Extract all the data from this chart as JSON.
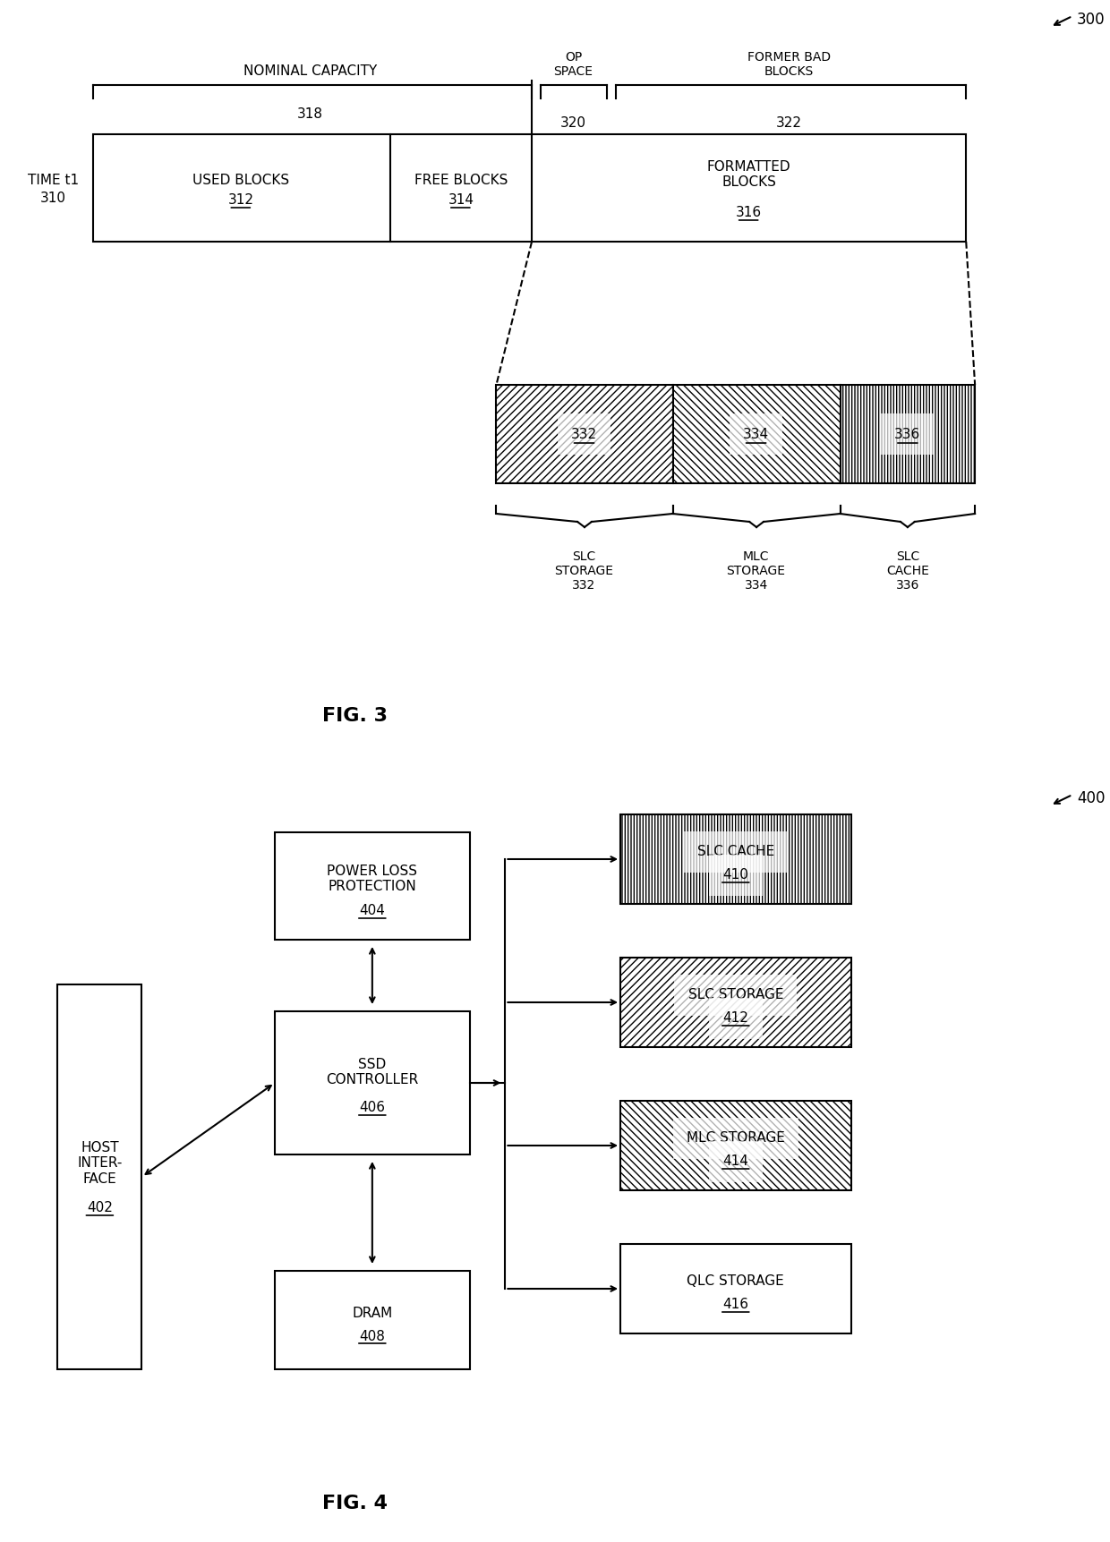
{
  "fig_width": 12.4,
  "fig_height": 17.23,
  "bg_color": "#ffffff",
  "line_color": "#000000",
  "fig3": {
    "ref_num": "300",
    "time_label": "TIME t1\n310",
    "nominal_capacity_label": "NOMINAL CAPACITY\n318",
    "op_space_label": "OP\nSPACE\n320",
    "former_bad_label": "FORMER BAD\nBLOCKS\n322",
    "used_blocks_label": "USED BLOCKS\n312",
    "free_blocks_label": "FREE BLOCKS\n314",
    "formatted_blocks_label": "FORMATTED\nBLOCKS\n316",
    "slc_storage_label": "SLC\nSTORAGE\n332",
    "mlc_storage_label": "MLC\nSTORAGE\n334",
    "slc_cache_label": "SLC\nCACHE\n336",
    "fig_label": "FIG. 3"
  },
  "fig4": {
    "ref_num": "400",
    "host_label": "HOST\nINTER-\nFACE\n402",
    "power_loss_label": "POWER LOSS\nPROTECTION\n404",
    "ssd_ctrl_label": "SSD\nCONTROLLER\n406",
    "dram_label": "DRAM\n408",
    "slc_cache_label": "SLC CACHE\n410",
    "slc_storage_label": "SLC STORAGE\n412",
    "mlc_storage_label": "MLC STORAGE\n414",
    "qlc_storage_label": "QLC STORAGE\n416",
    "fig_label": "FIG. 4"
  }
}
